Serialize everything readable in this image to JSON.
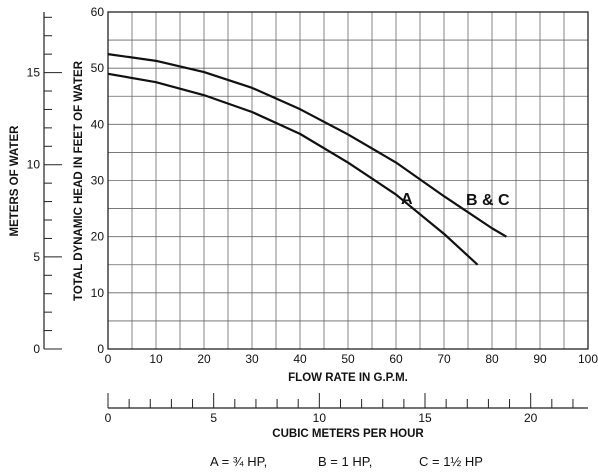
{
  "chart_data": {
    "type": "line",
    "x": [
      0,
      10,
      20,
      30,
      40,
      50,
      60,
      70,
      77,
      83
    ],
    "series": [
      {
        "name": "A",
        "x": [
          0,
          10,
          20,
          30,
          40,
          50,
          60,
          70,
          77
        ],
        "values": [
          49,
          47.5,
          45.2,
          42.2,
          38.3,
          33.2,
          27.5,
          20.5,
          15
        ]
      },
      {
        "name": "B & C",
        "x": [
          0,
          10,
          20,
          30,
          40,
          50,
          60,
          70,
          80,
          83
        ],
        "values": [
          52.5,
          51.3,
          49.3,
          46.5,
          42.7,
          38.2,
          33.2,
          27.2,
          21.5,
          20
        ]
      }
    ],
    "xlabel": "FLOW RATE IN G.P.M.",
    "ylabel": "TOTAL DYNAMIC HEAD IN FEET OF WATER",
    "xlim": [
      0,
      100
    ],
    "ylim": [
      0,
      60
    ],
    "x_ticks": [
      "0",
      "10",
      "20",
      "30",
      "40",
      "50",
      "60",
      "70",
      "80",
      "90",
      "100"
    ],
    "y_ticks": [
      "0",
      "10",
      "20",
      "30",
      "40",
      "50",
      "60"
    ],
    "grid": true,
    "secondary_y": {
      "label": "METERS OF WATER",
      "ticks": [
        "0",
        "5",
        "10",
        "15"
      ],
      "tick_values": [
        0,
        5,
        10,
        15
      ],
      "range": [
        0,
        18.288
      ]
    },
    "secondary_x": {
      "label": "CUBIC METERS PER HOUR",
      "ticks": [
        "0",
        "5",
        "10",
        "15",
        "20"
      ],
      "tick_values": [
        0,
        5,
        10,
        15,
        20
      ],
      "range": [
        0,
        22.712
      ]
    },
    "curve_labels": [
      "A",
      "B & C"
    ],
    "legend": [
      "A = ¾ HP,",
      "B = 1 HP,",
      "C = 1½ HP"
    ]
  }
}
